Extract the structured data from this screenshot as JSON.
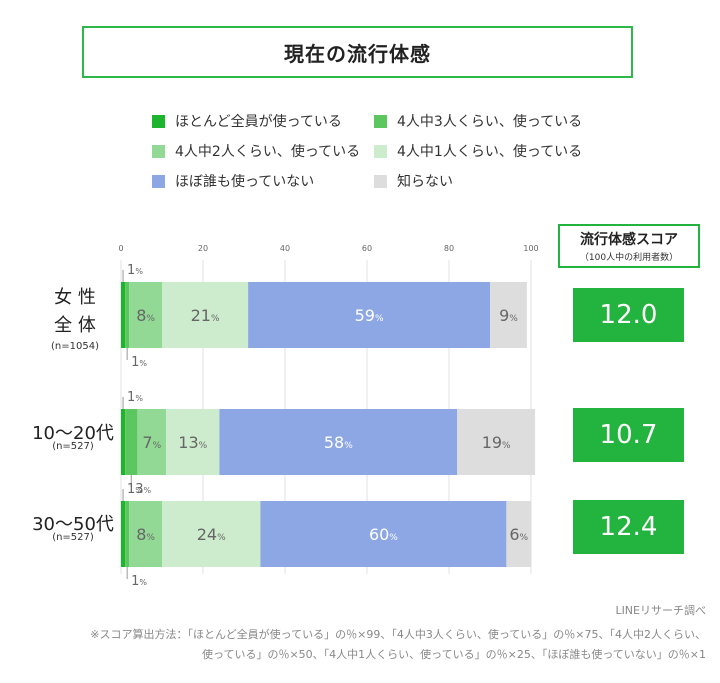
{
  "title": "現在の流行体感",
  "legend": [
    {
      "label": "ほとんど全員が使っている",
      "color": "#1db42e"
    },
    {
      "label": "4人中3人くらい、使っている",
      "color": "#5cc75e"
    },
    {
      "label": "4人中2人くらい、使っている",
      "color": "#92d996"
    },
    {
      "label": "4人中1人くらい、使っている",
      "color": "#cdeccd"
    },
    {
      "label": "ほぼ誰も使っていない",
      "color": "#8ca7e4"
    },
    {
      "label": "知らない",
      "color": "#dddddd"
    }
  ],
  "score_header": {
    "title": "流行体感スコア",
    "subtitle": "（100人中の利用者数）"
  },
  "rows": [
    {
      "label": "女 性",
      "label2": "全 体",
      "n": "(n=1054)",
      "score": "12.0"
    },
    {
      "label": "10〜20代",
      "label2": "",
      "n": "(n=527)",
      "score": "10.7"
    },
    {
      "label": "30〜50代",
      "label2": "",
      "n": "(n=527)",
      "score": "12.4"
    }
  ],
  "chart_data": {
    "type": "bar",
    "orientation": "horizontal",
    "stacked": true,
    "categories": [
      "女性全体",
      "10〜20代",
      "30〜50代"
    ],
    "xlim": [
      0,
      100
    ],
    "xticks": [
      0,
      20,
      40,
      60,
      80,
      100
    ],
    "grid": true,
    "legend_position": "top",
    "series": [
      {
        "name": "ほとんど全員が使っている",
        "color": "#1db42e",
        "values": [
          1,
          1,
          1
        ]
      },
      {
        "name": "4人中3人くらい、使っている",
        "color": "#5cc75e",
        "values": [
          1,
          3,
          1
        ]
      },
      {
        "name": "4人中2人くらい、使っている",
        "color": "#92d996",
        "values": [
          8,
          7,
          8
        ]
      },
      {
        "name": "4人中1人くらい、使っている",
        "color": "#cdeccd",
        "values": [
          21,
          13,
          24
        ]
      },
      {
        "name": "ほぼ誰も使っていない",
        "color": "#8ca7e4",
        "values": [
          59,
          58,
          60
        ]
      },
      {
        "name": "知らない",
        "color": "#dddddd",
        "values": [
          9,
          19,
          6
        ]
      }
    ],
    "unit": "%"
  },
  "footer": {
    "source": "LINEリサーチ調べ",
    "note_line1": "※スコア算出方法：「ほとんど全員が使っている」の％×99、「4人中3人くらい、使っている」の％×75、「4人中2人くらい、",
    "note_line2": "使っている」の％×50、「4人中1人くらい、使っている」の％×25、「ほぼ誰も使っていない」の％×1"
  }
}
